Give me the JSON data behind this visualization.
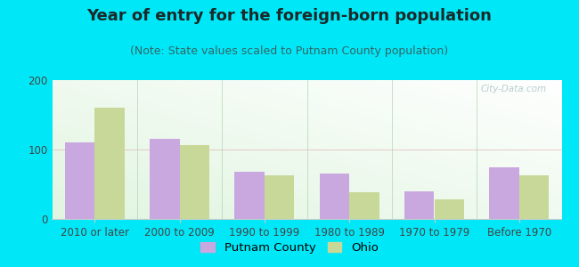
{
  "title": "Year of entry for the foreign-born population",
  "subtitle": "(Note: State values scaled to Putnam County population)",
  "categories": [
    "2010 or later",
    "2000 to 2009",
    "1990 to 1999",
    "1980 to 1989",
    "1970 to 1979",
    "Before 1970"
  ],
  "putnam_values": [
    110,
    115,
    68,
    65,
    40,
    75
  ],
  "ohio_values": [
    160,
    107,
    63,
    38,
    28,
    63
  ],
  "putnam_color": "#c9a8e0",
  "ohio_color": "#c8d898",
  "background_outer": "#00e8f8",
  "ylim": [
    0,
    200
  ],
  "yticks": [
    0,
    100,
    200
  ],
  "title_fontsize": 13,
  "subtitle_fontsize": 9,
  "legend_fontsize": 9.5,
  "tick_fontsize": 8.5,
  "bar_width": 0.35,
  "legend_putnam": "Putnam County",
  "legend_ohio": "Ohio",
  "separator_color": "#aaccaa",
  "watermark_text": "City-Data.com",
  "watermark_color": "#b0c8c8",
  "spine_color": "#cccccc"
}
